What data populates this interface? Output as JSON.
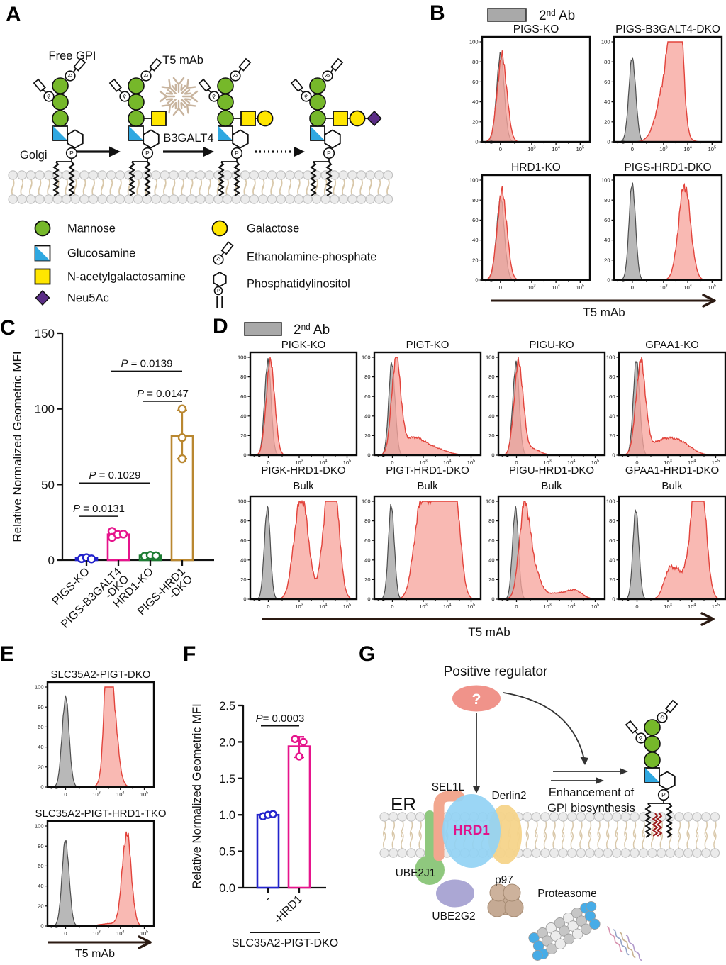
{
  "panel_labels": {
    "A": "A",
    "B": "B",
    "C": "C",
    "D": "D",
    "E": "E",
    "F": "F",
    "G": "G"
  },
  "panelA": {
    "free_gpi_label": "Free GPI",
    "t5_label": "T5 mAb",
    "enzyme_label": "B3GALT4",
    "golgi_label": "Golgi",
    "legend_left": [
      {
        "icon": "mannose-icon",
        "label": "Mannose"
      },
      {
        "icon": "glucosamine-icon",
        "label": "Glucosamine"
      },
      {
        "icon": "n-acetylgalactosamine-icon",
        "label": "N-acetylgalactosamine"
      },
      {
        "icon": "neu5ac-icon",
        "label": "Neu5Ac"
      }
    ],
    "legend_right": [
      {
        "icon": "galactose-icon",
        "label": "Galactose"
      },
      {
        "icon": "ethanolamine-phosphate-icon",
        "label": "Ethanolamine-phosphate"
      },
      {
        "icon": "phosphatidylinositol-icon",
        "label": "Phosphatidylinositol"
      }
    ]
  },
  "panelG": {
    "positive_regulator": "Positive regulator",
    "question_mark": "?",
    "er": "ER",
    "sel1l": "SEL1L",
    "derlin2": "Derlin2",
    "hrd1": "HRD1",
    "ube2j1": "UBE2J1",
    "ube2g2": "UBE2G2",
    "p97": "p97",
    "proteasome": "Proteasome",
    "enhancement_line1": "Enhancement of",
    "enhancement_line2": "GPI biosynthesis"
  },
  "chart_data": [
    {
      "id": "B",
      "type": "histogram-flow",
      "legend": {
        "base": "2",
        "sup": "nd",
        "rest": " Ab"
      },
      "x_axis_label": "T5 mAb",
      "x_ticks": [
        "0",
        "10^3",
        "10^4",
        "10^5"
      ],
      "y_ticks": [
        0,
        20,
        40,
        60,
        80,
        100
      ],
      "plots": [
        {
          "title": "PIGS-KO",
          "gray_peaks": [
            [
              0.17,
              88,
              0.035
            ]
          ],
          "red_peaks": [
            [
              0.185,
              85,
              0.045
            ]
          ]
        },
        {
          "title": "PIGS-B3GALT4-DKO",
          "gray_peaks": [
            [
              0.17,
              84,
              0.032
            ]
          ],
          "red_peaks": [
            [
              0.5,
              68,
              0.085
            ],
            [
              0.565,
              95,
              0.045
            ],
            [
              0.61,
              82,
              0.035
            ]
          ]
        },
        {
          "title": "HRD1-KO",
          "gray_peaks": [
            [
              0.17,
              82,
              0.036
            ]
          ],
          "red_peaks": [
            [
              0.185,
              88,
              0.045
            ]
          ]
        },
        {
          "title": "PIGS-HRD1-DKO",
          "gray_peaks": [
            [
              0.17,
              97,
              0.03
            ]
          ],
          "red_peaks": [
            [
              0.655,
              95,
              0.055
            ]
          ]
        }
      ]
    },
    {
      "id": "C",
      "type": "bar",
      "y_label": "Relative Normalized Geometric MFI",
      "ylim": [
        0,
        150
      ],
      "y_ticks": [
        0,
        50,
        100,
        150
      ],
      "bars": [
        {
          "label_lines": [
            "PIGS-KO"
          ],
          "color": "#2323cc",
          "value": 1.5,
          "points": [
            1.0,
            1.6,
            0.8
          ],
          "offsets": [
            -7,
            0,
            7
          ]
        },
        {
          "label_lines": [
            "PIGS-B3GALT4",
            "-DKO"
          ],
          "color": "#e6148c",
          "value": 17,
          "err": [
            15.5,
            18.5
          ],
          "points": [
            19,
            15,
            17,
            17.2
          ],
          "offsets": [
            -9,
            -9,
            -1,
            7
          ]
        },
        {
          "label_lines": [
            "HRD1-KO"
          ],
          "color": "#1d7c33",
          "value": 3,
          "points": [
            2.6,
            3.2,
            2.9
          ],
          "offsets": [
            -8,
            0,
            8
          ]
        },
        {
          "label_lines": [
            "PIGS-HRD1",
            "-DKO"
          ],
          "color": "#b98730",
          "value": 82,
          "err": [
            67,
            99
          ],
          "points": [
            67,
            81,
            100
          ],
          "offsets": [
            0,
            0,
            0
          ]
        }
      ],
      "pvalues": [
        {
          "p": "P",
          "rest": " = 0.0131",
          "bar1": 0,
          "bar2": 1,
          "line_value": 29
        },
        {
          "p": "P",
          "rest": " = 0.1029",
          "bar1": 0,
          "bar2": 2,
          "line_value": 51
        },
        {
          "p": "P",
          "rest": " = 0.0147",
          "bar1": 2,
          "bar2": 3,
          "line_value": 105
        },
        {
          "p": "P",
          "rest": " = 0.0139",
          "bar1": 1,
          "bar2": 3,
          "line_value": 125
        }
      ]
    },
    {
      "id": "D",
      "type": "histogram-flow",
      "legend": {
        "base": "2",
        "sup": "nd",
        "rest": " Ab"
      },
      "x_axis_label": "T5 mAb",
      "x_ticks": [
        "0",
        "10^3",
        "10^4",
        "10^5"
      ],
      "y_ticks": [
        0,
        20,
        40,
        60,
        80,
        100
      ],
      "plots": [
        {
          "title": "PIGK-KO",
          "gray_peaks": [
            [
              0.165,
              97,
              0.03
            ]
          ],
          "red_peaks": [
            [
              0.19,
              96,
              0.04
            ]
          ]
        },
        {
          "title": "PIGT-KO",
          "gray_peaks": [
            [
              0.165,
              94,
              0.03
            ]
          ],
          "red_peaks": [
            [
              0.205,
              97,
              0.042
            ],
            [
              0.36,
              16,
              0.1
            ],
            [
              0.55,
              7,
              0.12
            ]
          ]
        },
        {
          "title": "PIGU-KO",
          "gray_peaks": [
            [
              0.165,
              94,
              0.03
            ]
          ],
          "red_peaks": [
            [
              0.19,
              92,
              0.042
            ],
            [
              0.3,
              7,
              0.08
            ]
          ]
        },
        {
          "title": "GPAA1-KO",
          "gray_peaks": [
            [
              0.165,
              97,
              0.03
            ]
          ],
          "red_peaks": [
            [
              0.205,
              93,
              0.045
            ],
            [
              0.42,
              15,
              0.12
            ],
            [
              0.6,
              9,
              0.1
            ]
          ]
        },
        {
          "title": "PIGK-HRD1-DKO",
          "title2": "Bulk",
          "gray_peaks": [
            [
              0.16,
              94,
              0.028
            ]
          ],
          "red_peaks": [
            [
              0.45,
              73,
              0.055
            ],
            [
              0.52,
              55,
              0.05
            ],
            [
              0.74,
              97,
              0.06
            ],
            [
              0.79,
              72,
              0.05
            ]
          ]
        },
        {
          "title": "PIGT-HRD1-DKO",
          "title2": "Bulk",
          "gray_peaks": [
            [
              0.16,
              96,
              0.028
            ]
          ],
          "red_peaks": [
            [
              0.42,
              70,
              0.06
            ],
            [
              0.5,
              58,
              0.06
            ],
            [
              0.58,
              60,
              0.05
            ],
            [
              0.66,
              80,
              0.05
            ],
            [
              0.71,
              93,
              0.045
            ],
            [
              0.77,
              76,
              0.05
            ]
          ]
        },
        {
          "title": "PIGU-HRD1-DKO",
          "title2": "Bulk",
          "gray_peaks": [
            [
              0.16,
              93,
              0.028
            ]
          ],
          "red_peaks": [
            [
              0.245,
              92,
              0.05
            ],
            [
              0.34,
              25,
              0.06
            ],
            [
              0.55,
              6,
              0.1
            ],
            [
              0.72,
              8,
              0.07
            ]
          ]
        },
        {
          "title": "GPAA1-HRD1-DKO",
          "title2": "Bulk",
          "gray_peaks": [
            [
              0.16,
              92,
              0.028
            ]
          ],
          "red_peaks": [
            [
              0.47,
              27,
              0.05
            ],
            [
              0.56,
              22,
              0.05
            ],
            [
              0.72,
              95,
              0.06
            ],
            [
              0.78,
              70,
              0.05
            ]
          ]
        }
      ]
    },
    {
      "id": "E",
      "type": "histogram-flow",
      "x_axis_label": "T5 mAb",
      "x_ticks": [
        "0",
        "10^3",
        "10^4",
        "10^5"
      ],
      "y_ticks": [
        0,
        20,
        40,
        60,
        80,
        100
      ],
      "plots": [
        {
          "title": "SLC35A2-PIGT-DKO",
          "gray_peaks": [
            [
              0.17,
              90,
              0.033
            ]
          ],
          "red_peaks": [
            [
              0.6,
              96,
              0.05
            ],
            [
              0.565,
              80,
              0.03
            ]
          ]
        },
        {
          "title": "SLC35A2-PIGT-HRD1-TKO",
          "gray_peaks": [
            [
              0.17,
              86,
              0.033
            ]
          ],
          "red_peaks": [
            [
              0.745,
              92,
              0.042
            ],
            [
              0.6,
              2.5,
              0.1
            ]
          ]
        }
      ]
    },
    {
      "id": "F",
      "type": "bar",
      "y_label": "Relative Normalized Geometric MFI",
      "ylim": [
        0,
        2.5
      ],
      "y_ticks": [
        0,
        0.5,
        1.0,
        1.5,
        2.0,
        2.5
      ],
      "tick_decimals": 1,
      "bars": [
        {
          "label_lines": [
            "-"
          ],
          "color": "#2323cc",
          "value": 1.0,
          "err": [
            0.97,
            1.02
          ],
          "points": [
            0.98,
            1.0,
            1.01
          ],
          "offsets": [
            -7,
            0,
            7
          ]
        },
        {
          "label_lines": [
            "-HRD1"
          ],
          "color": "#e6148c",
          "value": 1.94,
          "err": [
            1.79,
            2.07
          ],
          "points": [
            2.04,
            2.0,
            1.8
          ],
          "offsets": [
            -6,
            6,
            0
          ]
        }
      ],
      "pvalues": [
        {
          "p": "P",
          "rest": "= 0.0003",
          "bar1": 0,
          "bar2": 1,
          "line_value": 2.22
        }
      ],
      "group_label": "SLC35A2-PIGT-DKO"
    }
  ],
  "colors": {
    "red_fill": "#F7A59E",
    "red_line": "#E2433B",
    "gray_fill": "#ACACAC",
    "gray_line": "#4D4D4D",
    "mannose": "#76B82A",
    "galactose_yellow": "#FFE600",
    "glucosamine_blue": "#2FA8E1",
    "neu5ac_purple": "#5B2D86",
    "hrd1_text": "#E0128A"
  }
}
